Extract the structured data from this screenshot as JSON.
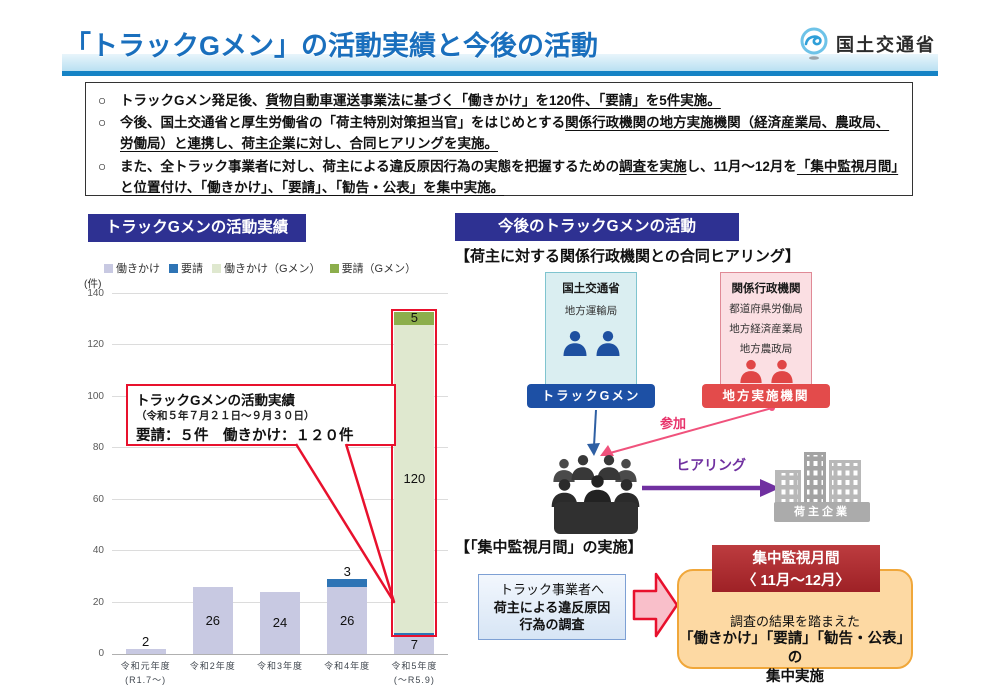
{
  "header": {
    "title": "「トラックGメン」の活動実績と今後の活動",
    "agency": "国土交通省"
  },
  "summary_bullets": [
    {
      "segments": [
        {
          "t": "トラックGメン発足後、",
          "u": false
        },
        {
          "t": "貨物自動車運送事業法に基づく「働きかけ」を120件、「要請」を5件実施。",
          "u": true
        }
      ]
    },
    {
      "segments": [
        {
          "t": "今後、国土交通省と厚生労働省の「荷主特別対策担当官」をはじめとする",
          "u": false
        },
        {
          "t": "関係行政機関の地方実施機関（経済産業局、農政局、労働局）と連携し、荷主企業に対し、合同ヒアリングを実施。",
          "u": true
        }
      ]
    },
    {
      "segments": [
        {
          "t": "また、全トラック事業者に対し、荷主による違反原因行為の実態を把握するための",
          "u": false
        },
        {
          "t": "調査を実施",
          "u": true
        },
        {
          "t": "し、11月～12月を",
          "u": false
        },
        {
          "t": "「集中監視月間」と位置付け、「働きかけ」、「要請」、「勧告・公表」を集中実施。",
          "u": true
        }
      ]
    }
  ],
  "left_panel": {
    "title": "トラックGメンの活動実績",
    "callout": {
      "title": "トラックGメンの活動実績",
      "subtitle": "（令和５年７月２１日～９月３０日）",
      "body": "要請：５件　働きかけ：１２０件"
    }
  },
  "chart_data": {
    "type": "bar",
    "stacked": true,
    "unit_label": "(件)",
    "categories": [
      "令和元年度\n(R1.7～)",
      "令和2年度",
      "令和3年度",
      "令和4年度",
      "令和5年度\n(～R5.9)"
    ],
    "series": [
      {
        "name": "働きかけ",
        "color": "#c8c9e2",
        "values": [
          2,
          26,
          24,
          26,
          7
        ]
      },
      {
        "name": "要請",
        "color": "#2e74b5",
        "values": [
          0,
          0,
          0,
          3,
          1
        ]
      },
      {
        "name": "働きかけ（Gメン）",
        "color": "#dfe8cf",
        "values": [
          0,
          0,
          0,
          0,
          120
        ]
      },
      {
        "name": "要請（Gメン）",
        "color": "#8cae4c",
        "values": [
          0,
          0,
          0,
          0,
          5
        ]
      }
    ],
    "ylim": [
      0,
      140
    ],
    "ytick_step": 20,
    "grid": true,
    "legend_position": "top",
    "highlight": {
      "category_index": 4,
      "series": [
        "働きかけ（Gメン）",
        "要請（Gメン）"
      ],
      "color": "#e8112d"
    }
  },
  "right_panel": {
    "title": "今後のトラックGメンの活動",
    "hearing_section": {
      "heading": "【荷主に対する関係行政機関との合同ヒアリング】",
      "mlit_box": {
        "title": "国土交通省",
        "sub": "地方運輸局",
        "label": "トラックGメン"
      },
      "agency_box": {
        "title": "関係行政機関",
        "items": [
          "都道府県労働局",
          "地方経済産業局",
          "地方農政局"
        ],
        "label": "地方実施機関"
      },
      "participation_label": "参加",
      "hearing_label": "ヒアリング",
      "shipper_label": "荷主企業"
    },
    "monitoring_section": {
      "heading": "【「集中監視月間」の実施】",
      "survey_box": {
        "line1": "トラック事業者へ",
        "line2": "荷主による違反原因",
        "line3": "行為の調査"
      },
      "period_box": {
        "line1": "集中監視月間",
        "line2": "〈 11月～12月〉"
      },
      "action_box": {
        "line1": "調査の結果を踏まえた",
        "line2": "「働きかけ」「要請」「勧告・公表」の",
        "line3": "集中実施"
      }
    }
  },
  "colors": {
    "section_header_bg": "#2e3192",
    "title_blue": "#1a6fbd",
    "highlight_red": "#e8112d",
    "gmen_pill_blue": "#1d50a5",
    "regional_pill_red": "#e34b4b",
    "hearing_purple": "#7030a0",
    "participation_pink": "#e8336b",
    "period_box_red": "#a8272c",
    "action_box_orange": "#fdd9a3"
  }
}
